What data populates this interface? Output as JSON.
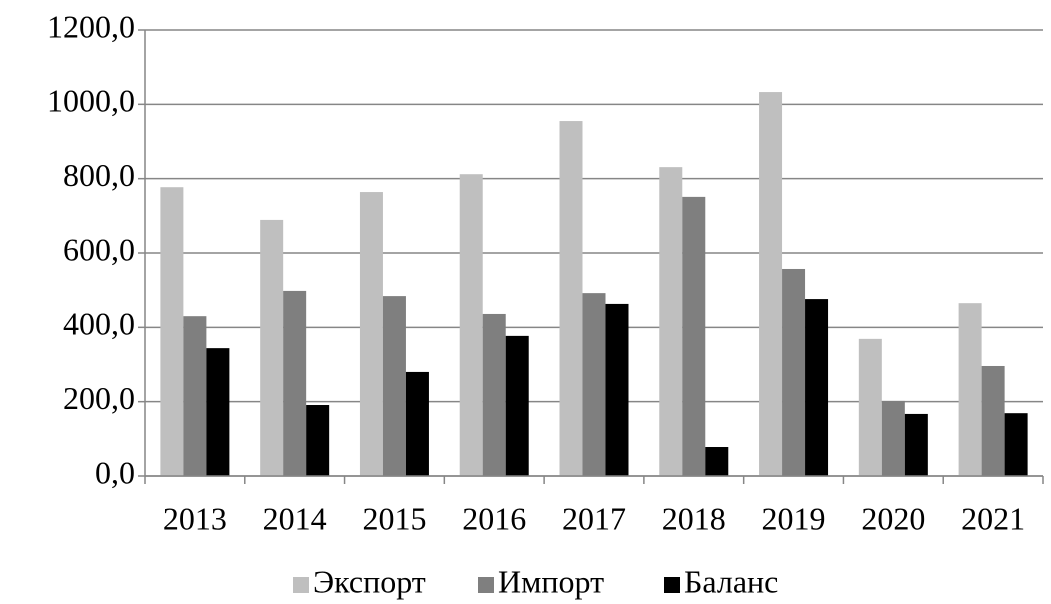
{
  "chart_data": {
    "type": "bar",
    "categories": [
      "2013",
      "2014",
      "2015",
      "2016",
      "2017",
      "2018",
      "2019",
      "2020",
      "2021"
    ],
    "series": [
      {
        "name": "Экспорт",
        "color": "#bfbfbf",
        "values": [
          777,
          689,
          764,
          812,
          955,
          831,
          1033,
          369,
          465
        ]
      },
      {
        "name": "Импорт",
        "color": "#7f7f7f",
        "values": [
          430,
          498,
          484,
          436,
          492,
          751,
          557,
          202,
          296
        ]
      },
      {
        "name": "Баланс",
        "color": "#000000",
        "values": [
          344,
          191,
          280,
          377,
          463,
          78,
          476,
          167,
          169
        ]
      }
    ],
    "ylim": [
      0,
      1200
    ],
    "yticks": [
      {
        "value": 0,
        "label": "0,0"
      },
      {
        "value": 200,
        "label": "200,0"
      },
      {
        "value": 400,
        "label": "400,0"
      },
      {
        "value": 600,
        "label": "600,0"
      },
      {
        "value": 800,
        "label": "800,0"
      },
      {
        "value": 1000,
        "label": "1000,0"
      },
      {
        "value": 1200,
        "label": "1200,0"
      }
    ],
    "grid": true,
    "legend": "bottom"
  }
}
